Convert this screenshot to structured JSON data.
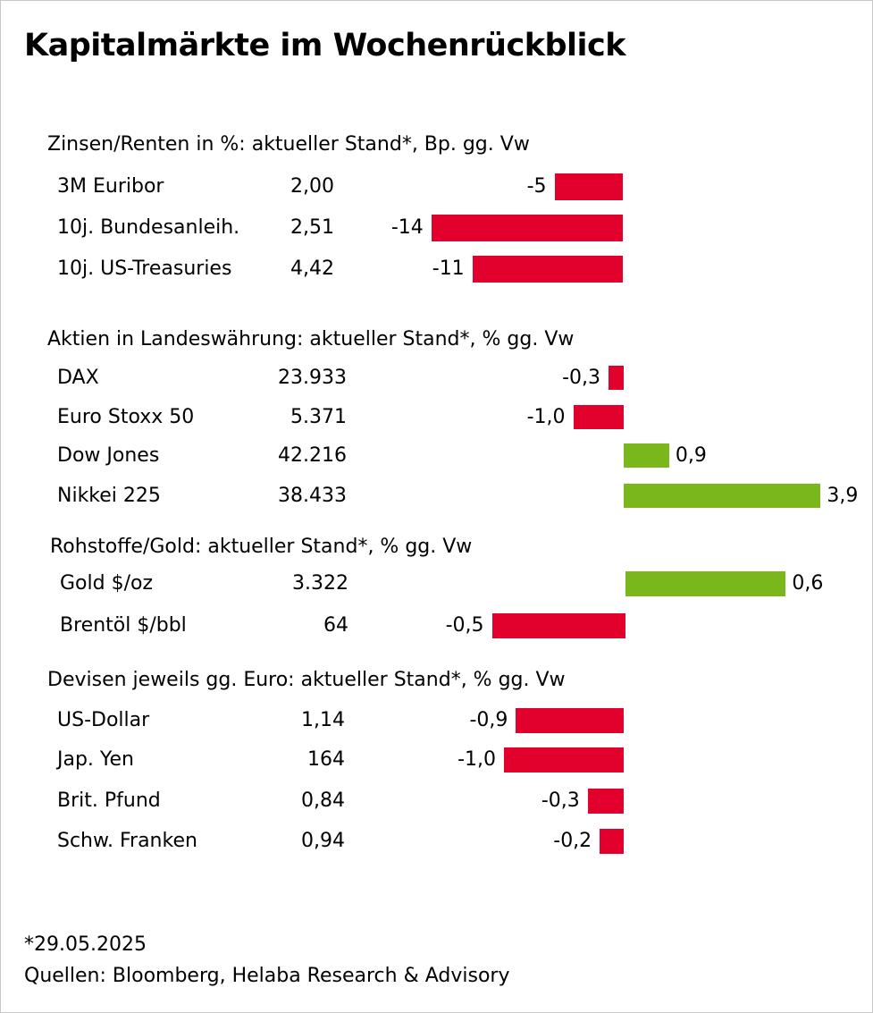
{
  "title": "Kapitalmärkte im Wochenrückblick",
  "colors": {
    "negative": "#e2002c",
    "positive": "#79b71a"
  },
  "chart_data": {
    "type": "bar",
    "orientation": "horizontal",
    "sections": [
      {
        "title": "Zinsen/Renten in %: aktueller Stand*, Bp. gg. Vw",
        "rows": [
          {
            "label": "3M Euribor",
            "level": "2,00",
            "change": -5,
            "change_label": "-5"
          },
          {
            "label": "10j. Bundesanleih.",
            "level": "2,51",
            "change": -14,
            "change_label": "-14"
          },
          {
            "label": "10j. US-Treasuries",
            "level": "4,42",
            "change": -11,
            "change_label": "-11"
          }
        ]
      },
      {
        "title": "Aktien in Landeswährung: aktueller Stand*, % gg. Vw",
        "rows": [
          {
            "label": "DAX",
            "level": "23.933",
            "change": -0.3,
            "change_label": "-0,3"
          },
          {
            "label": "Euro Stoxx 50",
            "level": "5.371",
            "change": -1.0,
            "change_label": "-1,0"
          },
          {
            "label": "Dow Jones",
            "level": "42.216",
            "change": 0.9,
            "change_label": "0,9"
          },
          {
            "label": "Nikkei 225",
            "level": "38.433",
            "change": 3.9,
            "change_label": "3,9"
          }
        ]
      },
      {
        "title": "Rohstoffe/Gold: aktueller Stand*, % gg. Vw",
        "rows": [
          {
            "label": "Gold $/oz",
            "level": "3.322",
            "change": 0.6,
            "change_label": "0,6"
          },
          {
            "label": "Brentöl $/bbl",
            "level": "64",
            "change": -0.5,
            "change_label": "-0,5"
          }
        ]
      },
      {
        "title": "Devisen jeweils gg. Euro: aktueller Stand*, % gg. Vw",
        "rows": [
          {
            "label": "US-Dollar",
            "level": "1,14",
            "change": -0.9,
            "change_label": "-0,9"
          },
          {
            "label": "Jap. Yen",
            "level": "164",
            "change": -1.0,
            "change_label": "-1,0"
          },
          {
            "label": "Brit. Pfund",
            "level": "0,84",
            "change": -0.3,
            "change_label": "-0,3"
          },
          {
            "label": "Schw. Franken",
            "level": "0,94",
            "change": -0.2,
            "change_label": "-0,2"
          }
        ]
      }
    ]
  },
  "footer": {
    "date": "*29.05.2025",
    "source": "Quellen: Bloomberg, Helaba Research & Advisory"
  }
}
